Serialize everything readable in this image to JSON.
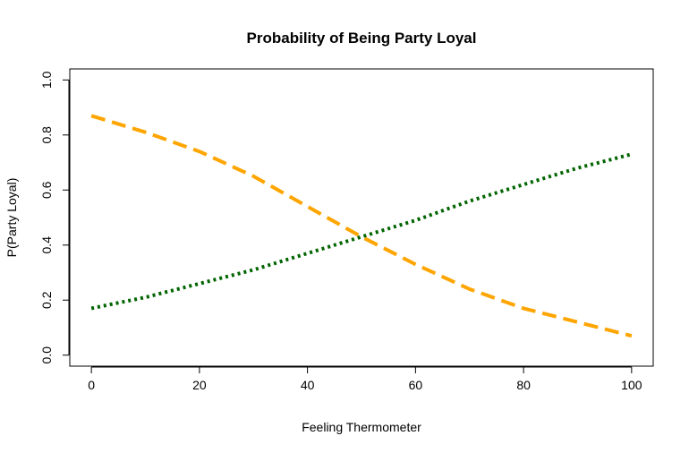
{
  "chart_data": {
    "type": "line",
    "title": "Probability of Being Party Loyal",
    "xlabel": "Feeling Thermometer",
    "ylabel": "P(Party Loyal)",
    "xlim": [
      -4,
      104
    ],
    "ylim": [
      -0.04,
      1.04
    ],
    "x_ticks": [
      "0",
      "20",
      "40",
      "60",
      "80",
      "100"
    ],
    "y_ticks": [
      "0.0",
      "0.2",
      "0.4",
      "0.6",
      "0.8",
      "1.0"
    ],
    "grid": false,
    "series": [
      {
        "color": "#FFA500",
        "style": "dashed",
        "x": [
          0,
          10,
          20,
          30,
          40,
          50,
          60,
          70,
          80,
          90,
          100
        ],
        "y": [
          0.87,
          0.81,
          0.74,
          0.65,
          0.54,
          0.43,
          0.33,
          0.24,
          0.17,
          0.12,
          0.07
        ]
      },
      {
        "color": "#006400",
        "style": "dotted",
        "x": [
          0,
          10,
          20,
          30,
          40,
          50,
          60,
          70,
          80,
          90,
          100
        ],
        "y": [
          0.17,
          0.21,
          0.26,
          0.31,
          0.37,
          0.43,
          0.49,
          0.56,
          0.62,
          0.68,
          0.73
        ]
      }
    ]
  }
}
